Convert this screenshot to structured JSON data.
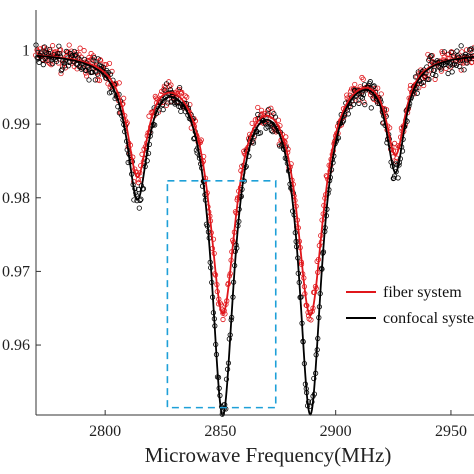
{
  "chart_data": {
    "type": "line",
    "title": "",
    "xlabel": "Microwave Frequency(MHz)",
    "ylabel": "",
    "xlim": [
      2770,
      2960
    ],
    "ylim": [
      0.9505,
      1.0055
    ],
    "grid": false,
    "x_ticks": [
      {
        "value": 2800,
        "label": "2800"
      },
      {
        "value": 2850,
        "label": "2850"
      },
      {
        "value": 2900,
        "label": "2900"
      },
      {
        "value": 2950,
        "label": "2950"
      }
    ],
    "y_ticks": [
      {
        "value": 1.0,
        "label": "1"
      },
      {
        "value": 0.99,
        "label": "0.99"
      },
      {
        "value": 0.98,
        "label": "0.98"
      },
      {
        "value": 0.97,
        "label": "0.97"
      },
      {
        "value": 0.96,
        "label": "0.96"
      }
    ],
    "legend_position": "right",
    "series": [
      {
        "name": "fiber system",
        "color": "#e0161b",
        "dips": [
          {
            "center": 2814,
            "depth": 0.0155,
            "width": 5.5
          },
          {
            "center": 2851,
            "depth": 0.0338,
            "width": 7
          },
          {
            "center": 2889,
            "depth": 0.0341,
            "width": 7
          },
          {
            "center": 2926,
            "depth": 0.0125,
            "width": 5
          }
        ]
      },
      {
        "name": "confocal system",
        "color": "#000000",
        "dips": [
          {
            "center": 2814,
            "depth": 0.0185,
            "width": 5.5
          },
          {
            "center": 2851,
            "depth": 0.0475,
            "width": 6
          },
          {
            "center": 2889,
            "depth": 0.0475,
            "width": 6
          },
          {
            "center": 2926,
            "depth": 0.0148,
            "width": 4.8
          }
        ]
      }
    ],
    "annotation": {
      "shape": "dashed-rectangle",
      "color": "#1ea0d8",
      "x_range": [
        2827,
        2874
      ],
      "y_range": [
        0.9515,
        0.9823
      ]
    }
  }
}
